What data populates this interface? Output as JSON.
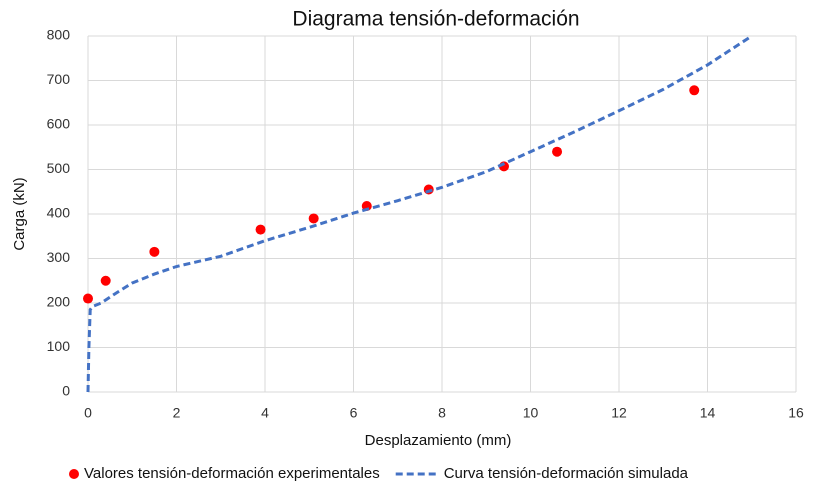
{
  "chart_data": {
    "type": "scatter",
    "title": "Diagrama tensión-deformación",
    "x_label": "Desplazamiento (mm)",
    "y_label": "Carga (kN)",
    "xlim": [
      0,
      16
    ],
    "xticks": [
      0,
      2,
      4,
      6,
      8,
      10,
      12,
      14,
      16
    ],
    "ylim": [
      0,
      800
    ],
    "yticks": [
      0,
      100,
      200,
      300,
      400,
      500,
      600,
      700,
      800
    ],
    "grid": true,
    "legend": "bottom",
    "series": [
      {
        "name": "Valores tensión-deformación experimentales",
        "type": "scatter",
        "color": "#ff0000",
        "x": [
          0,
          0.4,
          1.5,
          3.9,
          5.1,
          6.3,
          7.7,
          9.4,
          10.6,
          13.7
        ],
        "values": [
          210,
          250,
          315,
          365,
          390,
          418,
          455,
          507,
          540,
          678
        ]
      },
      {
        "name": "Curva tensión-deformación simulada",
        "type": "line",
        "color": "#4472c4",
        "x": [
          0,
          0.02,
          0.05,
          0.1,
          0.3,
          0.6,
          1,
          1.5,
          2,
          3,
          4,
          5,
          6,
          7,
          8,
          9,
          10,
          11,
          12,
          13,
          14,
          15
        ],
        "values": [
          0,
          100,
          185,
          192,
          200,
          220,
          245,
          265,
          282,
          305,
          340,
          370,
          402,
          430,
          460,
          495,
          540,
          585,
          632,
          680,
          735,
          800
        ]
      }
    ]
  }
}
